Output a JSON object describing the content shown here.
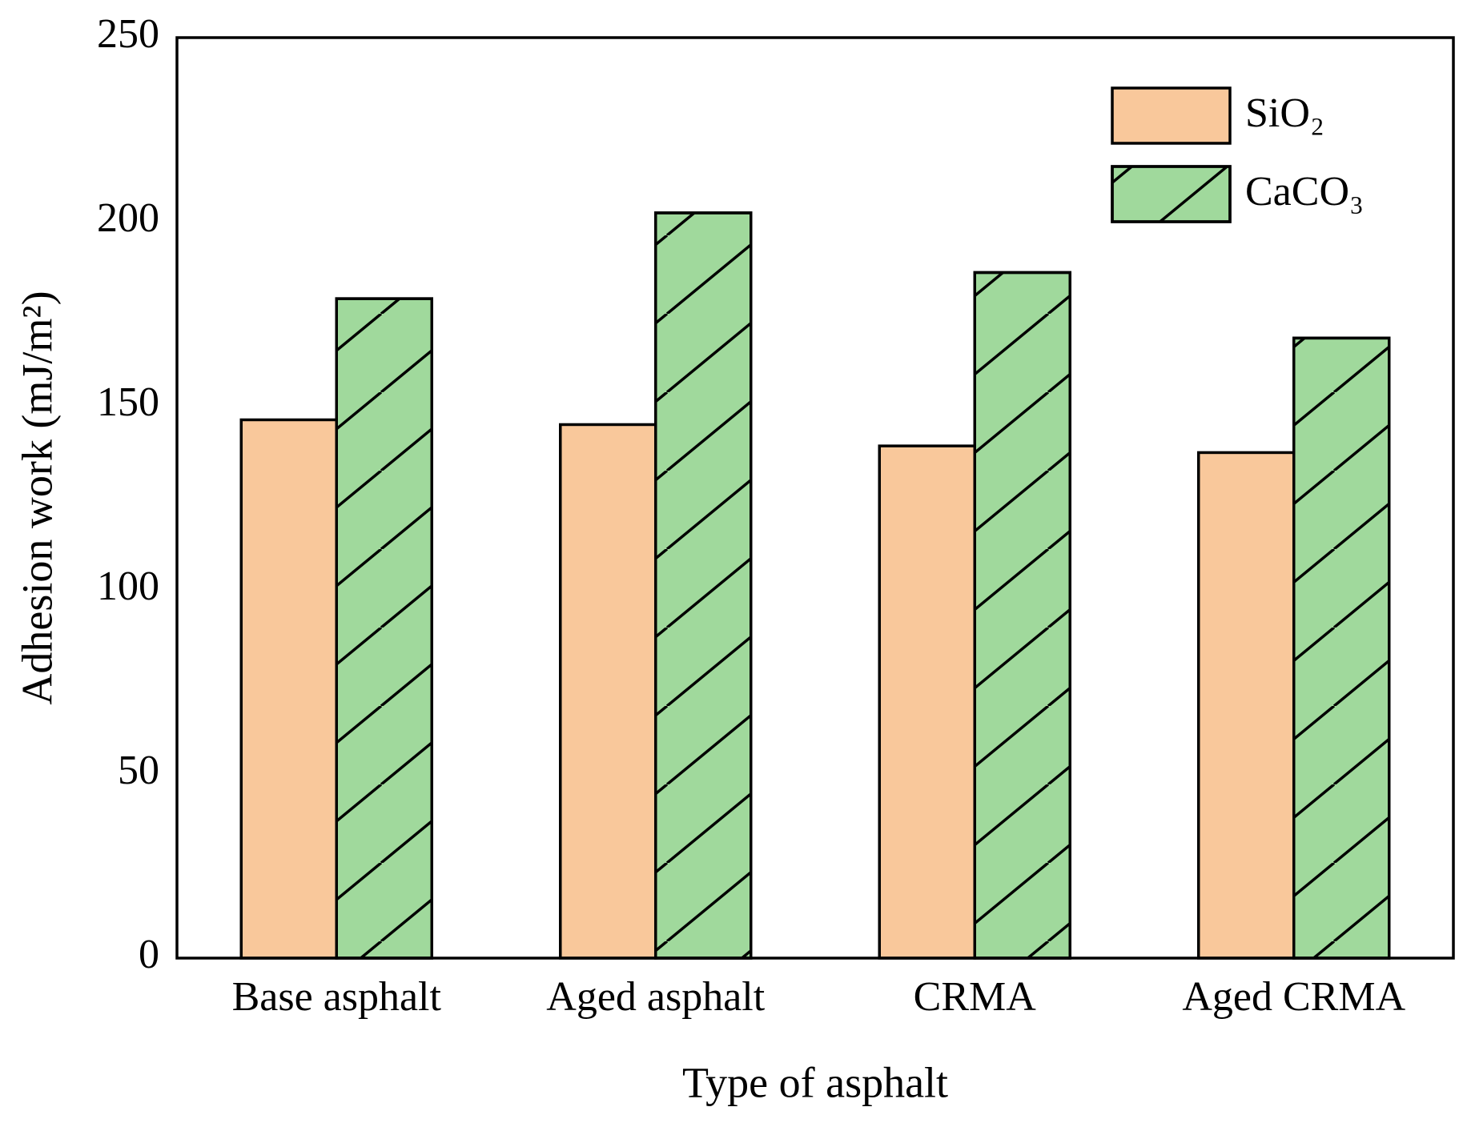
{
  "chart_data": {
    "type": "bar",
    "xlabel": "Type of asphalt",
    "ylabel": "Adhesion work (mJ/m²)",
    "categories": [
      "Base asphalt",
      "Aged asphalt",
      "CRMA",
      "Aged CRMA"
    ],
    "series": [
      {
        "name": "SiO₂",
        "color": "#f9c89b",
        "values": [
          146.2,
          144.9,
          139.1,
          137.3
        ]
      },
      {
        "name": "CaCO₃",
        "color": "#a0d99c",
        "hatch": "/",
        "values": [
          179.1,
          202.4,
          186.2,
          168.4
        ]
      }
    ],
    "ylim": [
      0,
      250
    ],
    "yticks": [
      0,
      50,
      100,
      150,
      200,
      250
    ],
    "grid": false,
    "legend": "upper right"
  }
}
